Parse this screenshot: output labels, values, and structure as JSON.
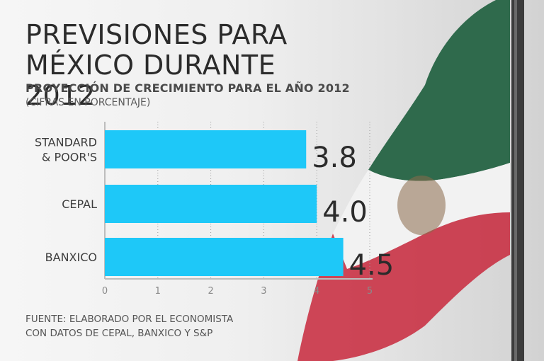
{
  "title_line1": "PREVISIONES PARA",
  "title_line2": "MÉXICO DURANTE 2012",
  "subtitle": "PROYECCIÓN DE CRECIMIENTO PARA EL AÑO 2012",
  "units": "(CIFRAS EN PORCENTAJE)",
  "source_line1": "FUENTE: ELABORADO POR EL ECONOMISTA",
  "source_line2": "CON DATOS DE CEPAL, BANXICO Y S&P",
  "colors": {
    "bar": "#1ec8f8",
    "flag_green": "#2f6a4c",
    "flag_red": "#c8283c"
  },
  "chart_data": {
    "type": "bar",
    "orientation": "horizontal",
    "title": "PROYECCIÓN DE CRECIMIENTO PARA EL AÑO 2012",
    "categories": [
      [
        "STANDARD",
        "& POOR'S"
      ],
      [
        "CEPAL"
      ],
      [
        "BANXICO"
      ]
    ],
    "values": [
      3.8,
      4.0,
      4.5
    ],
    "value_labels": [
      "3.8",
      "4.0",
      "4.5"
    ],
    "xlim": [
      0,
      5
    ],
    "xticks": [
      "0",
      "1",
      "2",
      "3",
      "4",
      "5"
    ],
    "grid": true
  }
}
